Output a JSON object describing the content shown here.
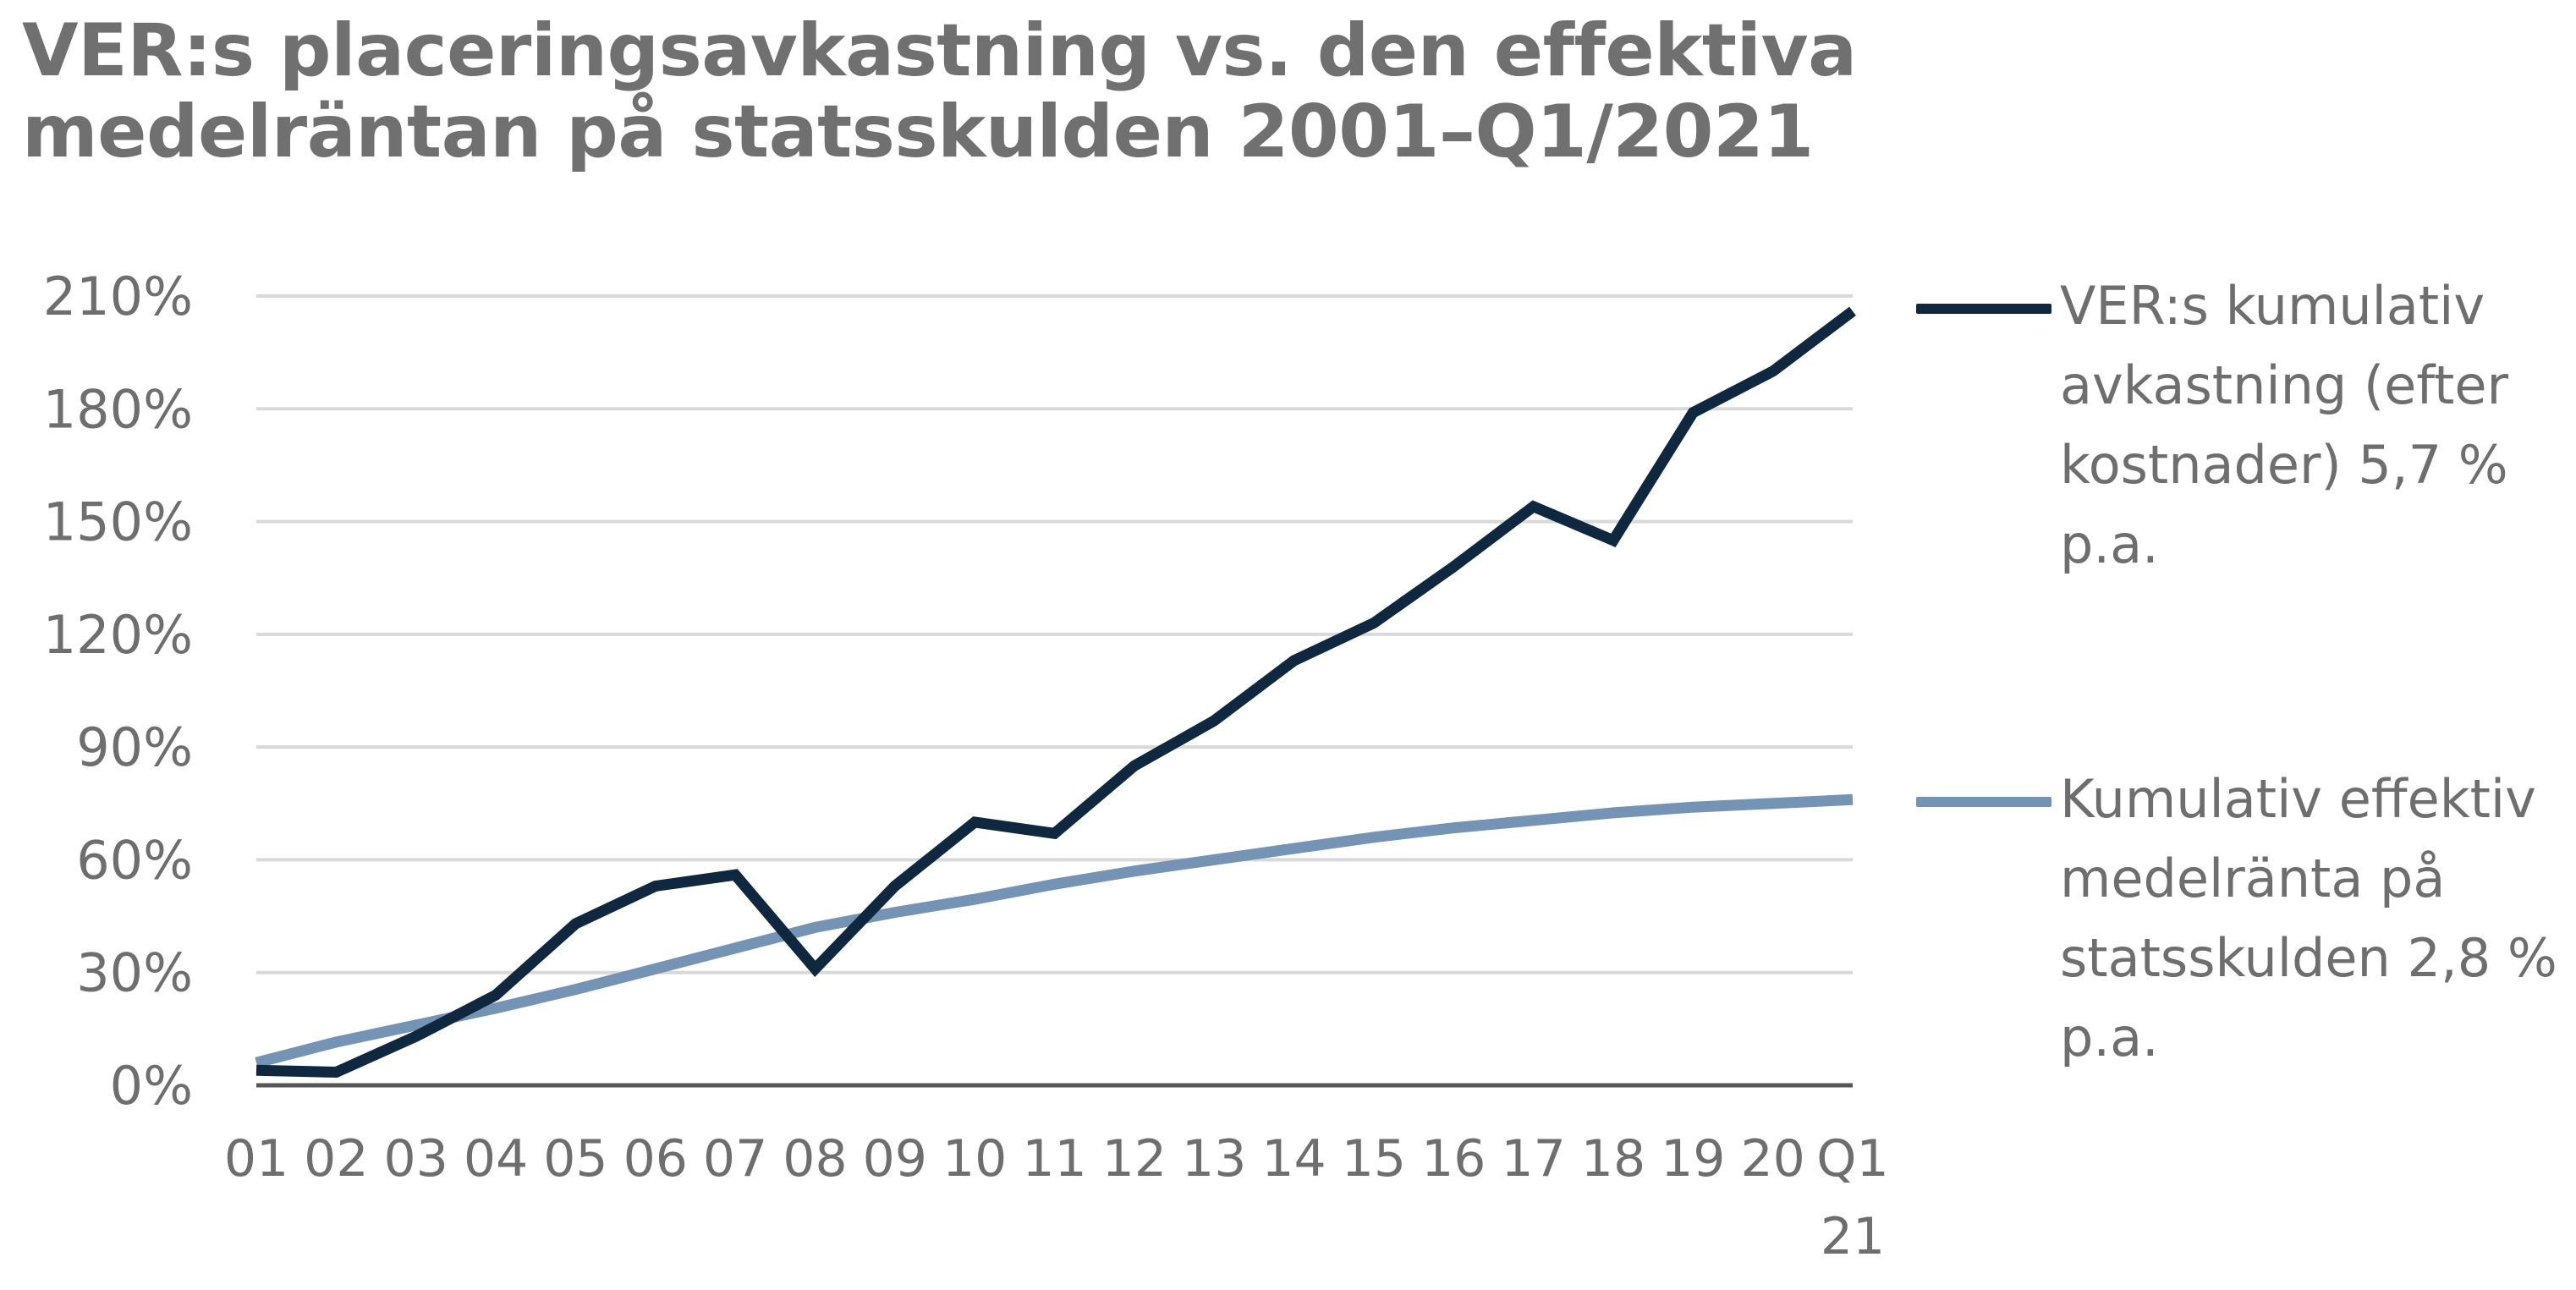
{
  "title": "VER:s placeringsavkastning vs. den effektiva medelräntan på statsskulden 2001–Q1/2021",
  "chart_data": {
    "type": "line",
    "title": "VER:s placeringsavkastning vs. den effektiva medelräntan på statsskulden 2001–Q1/2021",
    "xlabel": "",
    "ylabel": "",
    "categories": [
      "01",
      "02",
      "03",
      "04",
      "05",
      "06",
      "07",
      "08",
      "09",
      "10",
      "11",
      "12",
      "13",
      "14",
      "15",
      "16",
      "17",
      "18",
      "19",
      "20",
      "Q1\n21"
    ],
    "ylim": [
      0,
      210
    ],
    "yticks": [
      0,
      30,
      60,
      90,
      120,
      150,
      180,
      210
    ],
    "ytick_labels": [
      "0%",
      "30%",
      "60%",
      "90%",
      "120%",
      "150%",
      "180%",
      "210%"
    ],
    "grid": true,
    "legend_position": "right",
    "series": [
      {
        "name": "VER:s kumulativ avkastning (efter kostnader) 5,7 % p.a.",
        "color": "#0f2840",
        "values": [
          4,
          3.5,
          13,
          24,
          43,
          53,
          56,
          31,
          53,
          70,
          67,
          85,
          97,
          113,
          123,
          138,
          154,
          145,
          179,
          190,
          206
        ]
      },
      {
        "name": "Kumulativ effektiv medelränta på statsskulden 2,8 % p.a.",
        "color": "#7594b5",
        "values": [
          6,
          11.5,
          16,
          20.5,
          25.5,
          31,
          36.5,
          42,
          46,
          49.5,
          53.5,
          57,
          60,
          63,
          66,
          68.5,
          70.5,
          72.5,
          74,
          75,
          76
        ]
      }
    ]
  }
}
